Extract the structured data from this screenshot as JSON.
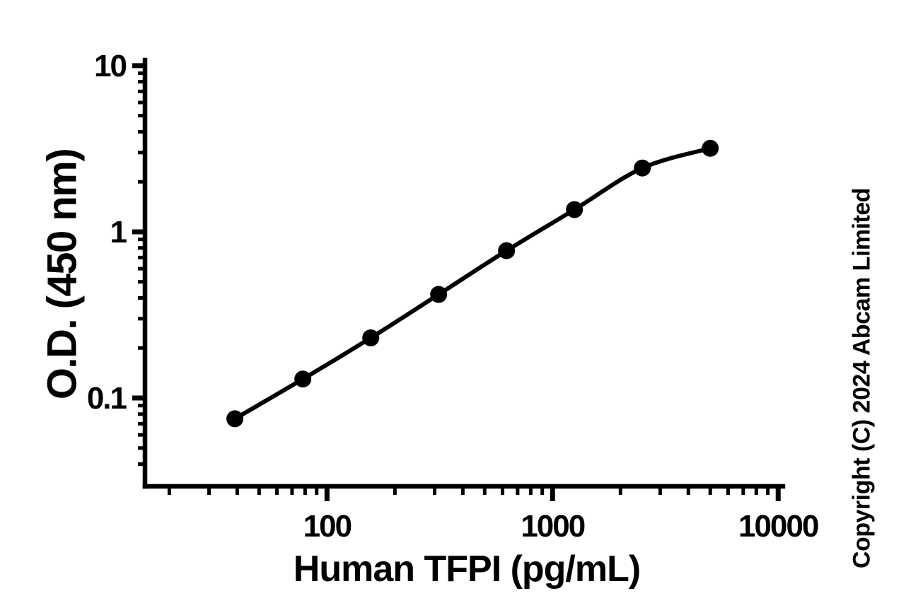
{
  "watermark": {
    "text": "Copyright (C) 2024 Abcam Limited"
  },
  "chart_data": {
    "type": "line",
    "subtype": "scatter-with-smooth-fit",
    "title": "",
    "xlabel": "Human TFPI (pg/mL)",
    "ylabel": "O.D. (450 nm)",
    "x_scale": "log",
    "y_scale": "log",
    "xlim": [
      15.6,
      10500
    ],
    "ylim": [
      0.0294,
      10.8
    ],
    "grid": false,
    "legend": false,
    "x": [
      39.06,
      78.13,
      156.3,
      312.5,
      625,
      1250,
      2500,
      5000
    ],
    "y": [
      0.075,
      0.13,
      0.23,
      0.42,
      0.77,
      1.36,
      2.42,
      3.18
    ],
    "x_major_ticks": [
      100,
      1000,
      10000
    ],
    "x_tick_labels": [
      "100",
      "1000",
      "10000"
    ],
    "x_minor_ticks": [
      20,
      30,
      40,
      50,
      60,
      70,
      80,
      90,
      200,
      300,
      400,
      500,
      600,
      700,
      800,
      900,
      2000,
      3000,
      4000,
      5000,
      6000,
      7000,
      8000,
      9000
    ],
    "y_major_ticks": [
      0.1,
      1,
      10
    ],
    "y_tick_labels": [
      "0.1",
      "1",
      "10"
    ],
    "y_minor_ticks": [
      0.04,
      0.05,
      0.06,
      0.07,
      0.08,
      0.09,
      0.2,
      0.3,
      0.4,
      0.5,
      0.6,
      0.7,
      0.8,
      0.9,
      2,
      3,
      4,
      5,
      6,
      7,
      8,
      9
    ],
    "marker": "filled-circle",
    "line_color": "#000000",
    "marker_color": "#000000",
    "background_color": "#ffffff"
  }
}
